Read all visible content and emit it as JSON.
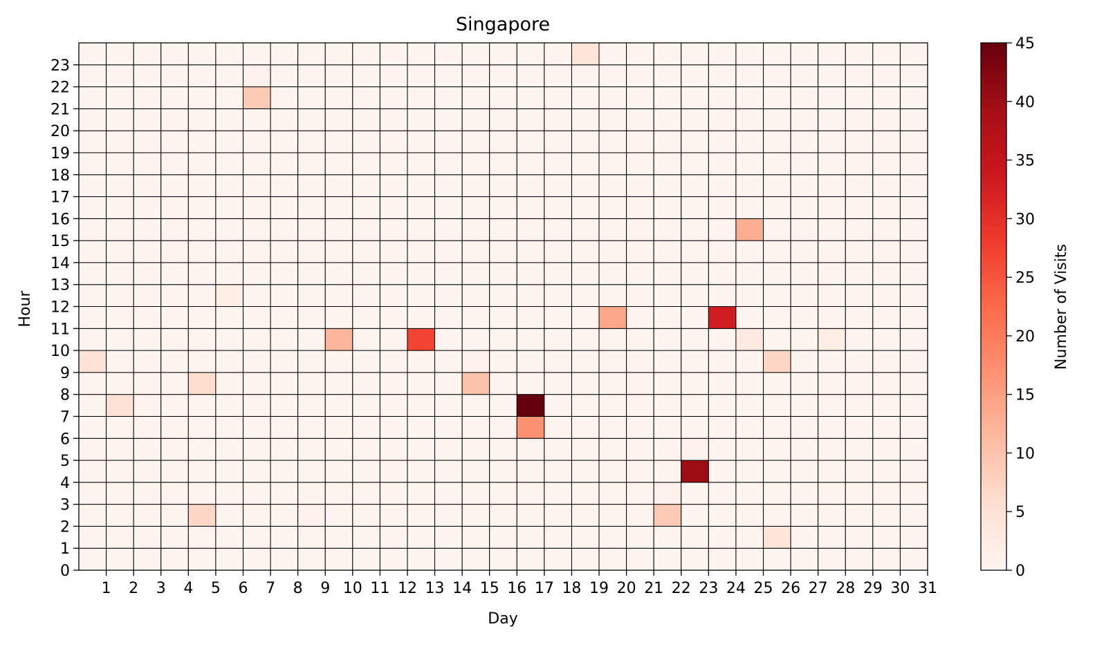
{
  "chart_data": {
    "type": "heatmap",
    "title": "Singapore",
    "xlabel": "Day",
    "ylabel": "Hour",
    "colorbar_label": "Number of Visits",
    "colormap": "Reds",
    "x_tick_labels": [
      "1",
      "2",
      "3",
      "4",
      "5",
      "6",
      "7",
      "8",
      "9",
      "10",
      "11",
      "12",
      "13",
      "14",
      "15",
      "16",
      "17",
      "18",
      "19",
      "20",
      "21",
      "22",
      "23",
      "24",
      "25",
      "26",
      "27",
      "28",
      "29",
      "30",
      "31"
    ],
    "y_tick_labels": [
      "0",
      "1",
      "2",
      "3",
      "4",
      "5",
      "6",
      "7",
      "8",
      "9",
      "10",
      "11",
      "12",
      "13",
      "14",
      "15",
      "16",
      "17",
      "18",
      "19",
      "20",
      "21",
      "22",
      "23"
    ],
    "colorbar_ticks": [
      "0",
      "5",
      "10",
      "15",
      "20",
      "25",
      "30",
      "35",
      "40",
      "45"
    ],
    "vmin": 0,
    "vmax": 45,
    "num_days": 31,
    "num_hours": 24,
    "default_value": 0,
    "cells": [
      {
        "day": 1,
        "hour": 9,
        "value": 5
      },
      {
        "day": 2,
        "hour": 7,
        "value": 5
      },
      {
        "day": 5,
        "hour": 8,
        "value": 6
      },
      {
        "day": 5,
        "hour": 2,
        "value": 7
      },
      {
        "day": 6,
        "hour": 12,
        "value": 2
      },
      {
        "day": 7,
        "hour": 21,
        "value": 9
      },
      {
        "day": 7,
        "hour": 22,
        "value": 1
      },
      {
        "day": 9,
        "hour": 2,
        "value": 1
      },
      {
        "day": 10,
        "hour": 10,
        "value": 12
      },
      {
        "day": 13,
        "hour": 10,
        "value": 27
      },
      {
        "day": 15,
        "hour": 8,
        "value": 10
      },
      {
        "day": 15,
        "hour": 9,
        "value": 1
      },
      {
        "day": 17,
        "hour": 7,
        "value": 45
      },
      {
        "day": 17,
        "hour": 6,
        "value": 17
      },
      {
        "day": 19,
        "hour": 23,
        "value": 4
      },
      {
        "day": 20,
        "hour": 11,
        "value": 14
      },
      {
        "day": 22,
        "hour": 2,
        "value": 9
      },
      {
        "day": 22,
        "hour": 3,
        "value": 1
      },
      {
        "day": 23,
        "hour": 4,
        "value": 40
      },
      {
        "day": 23,
        "hour": 5,
        "value": 1
      },
      {
        "day": 24,
        "hour": 11,
        "value": 33
      },
      {
        "day": 25,
        "hour": 15,
        "value": 13
      },
      {
        "day": 25,
        "hour": 10,
        "value": 3
      },
      {
        "day": 26,
        "hour": 9,
        "value": 7
      },
      {
        "day": 26,
        "hour": 1,
        "value": 4
      },
      {
        "day": 28,
        "hour": 10,
        "value": 2
      }
    ]
  }
}
